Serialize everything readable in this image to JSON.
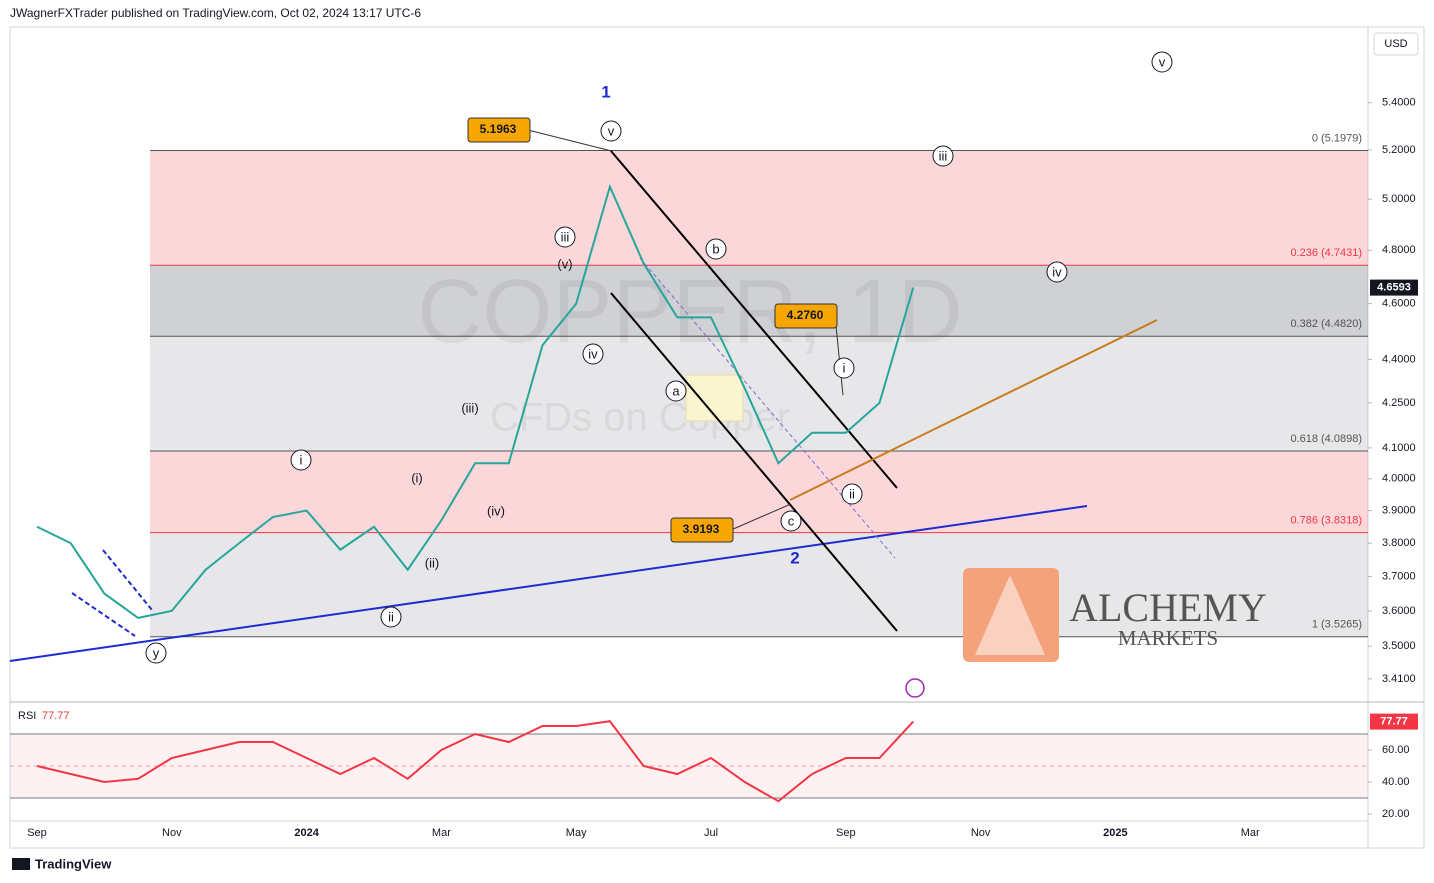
{
  "header": "JWagnerFXTrader published on TradingView.com, Oct 02, 2024 13:17 UTC-6",
  "footer": "TradingView",
  "watermark": {
    "symbol": "COPPER, 1D",
    "description": "CFDs on Copper"
  },
  "logo": {
    "name": "ALCHEMY",
    "sub": "MARKETS"
  },
  "currency": "USD",
  "chart_data": [
    {
      "type": "line",
      "log": true,
      "grid": false,
      "categories": [
        "Sep",
        null,
        null,
        null,
        "Nov",
        null,
        null,
        null,
        "2024",
        null,
        null,
        null,
        "Mar",
        null,
        null,
        null,
        "May",
        null,
        null,
        null,
        "Jul",
        null,
        null,
        null,
        "Sep",
        null,
        null,
        null,
        "Nov",
        null,
        null,
        null,
        "2025",
        null,
        null,
        null,
        "Mar",
        null,
        null,
        null
      ],
      "series": [
        {
          "name": "COPPER",
          "color": "#26a69a",
          "values": [
            3.85,
            3.8,
            3.65,
            3.58,
            3.6,
            3.72,
            3.8,
            3.88,
            3.9,
            3.78,
            3.85,
            3.72,
            3.87,
            4.05,
            4.05,
            4.45,
            4.6,
            5.05,
            4.75,
            4.55,
            4.55,
            4.3,
            4.05,
            4.15,
            4.15,
            4.25,
            4.6593,
            null,
            null,
            null,
            null,
            null,
            null,
            null,
            null,
            null,
            null,
            null,
            null,
            null
          ]
        }
      ],
      "ylim": [
        3.353,
        5.736
      ],
      "yticks": [
        {
          "value": 5.4,
          "label": "5.4000"
        },
        {
          "value": 5.2,
          "label": "5.2000"
        },
        {
          "value": 5.0,
          "label": "5.0000"
        },
        {
          "value": 4.8,
          "label": "4.8000"
        },
        {
          "value": 4.6,
          "label": "4.6000"
        },
        {
          "value": 4.4,
          "label": "4.4000"
        },
        {
          "value": 4.25,
          "label": "4.2500"
        },
        {
          "value": 4.1,
          "label": "4.1000"
        },
        {
          "value": 4.0,
          "label": "4.0000"
        },
        {
          "value": 3.9,
          "label": "3.9000"
        },
        {
          "value": 3.8,
          "label": "3.8000"
        },
        {
          "value": 3.7,
          "label": "3.7000"
        },
        {
          "value": 3.6,
          "label": "3.6000"
        },
        {
          "value": 3.5,
          "label": "3.5000"
        },
        {
          "value": 3.41,
          "label": "3.4100"
        }
      ],
      "fib_levels": [
        {
          "value": 5.1979,
          "label": "0 (5.1979)"
        },
        {
          "value": 4.7431,
          "label": "0.236 (4.7431)"
        },
        {
          "value": 4.482,
          "label": "0.382 (4.4820)"
        },
        {
          "value": 4.0898,
          "label": "0.618 (4.0898)"
        },
        {
          "value": 3.8318,
          "label": "0.786 (3.8318)"
        },
        {
          "value": 3.5265,
          "label": "1 (3.5265)"
        }
      ],
      "price_boxes": [
        {
          "value": 5.1963,
          "label": "5.1963"
        },
        {
          "value": 4.276,
          "label": "4.2760"
        },
        {
          "value": 3.9193,
          "label": "3.9193"
        }
      ],
      "annotations": [
        "1",
        "2",
        "v",
        "iii",
        "(v)",
        "iv",
        "b",
        "a",
        "i",
        "ii",
        "c",
        "(iii)",
        "(iv)",
        "(i)",
        "(ii)",
        "i",
        "ii",
        "y",
        "iii",
        "iv",
        "v"
      ]
    },
    {
      "type": "line",
      "title": "RSI",
      "series": [
        {
          "name": "RSI",
          "color": "#f23645",
          "values": [
            50,
            45,
            40,
            42,
            55,
            60,
            65,
            65,
            55,
            45,
            55,
            42,
            60,
            70,
            65,
            75,
            75,
            78,
            50,
            45,
            55,
            40,
            28,
            45,
            55,
            55,
            77.77,
            null,
            null,
            null,
            null,
            null,
            null,
            null,
            null,
            null,
            null,
            null,
            null,
            null
          ]
        }
      ],
      "ylim": [
        16.25,
        89.4
      ],
      "yticks": [
        {
          "value": 60,
          "label": "60.00"
        },
        {
          "value": 40,
          "label": "40.00"
        },
        {
          "value": 20,
          "label": "20.00"
        }
      ],
      "bands": [
        70,
        30
      ],
      "midline": 50
    }
  ]
}
